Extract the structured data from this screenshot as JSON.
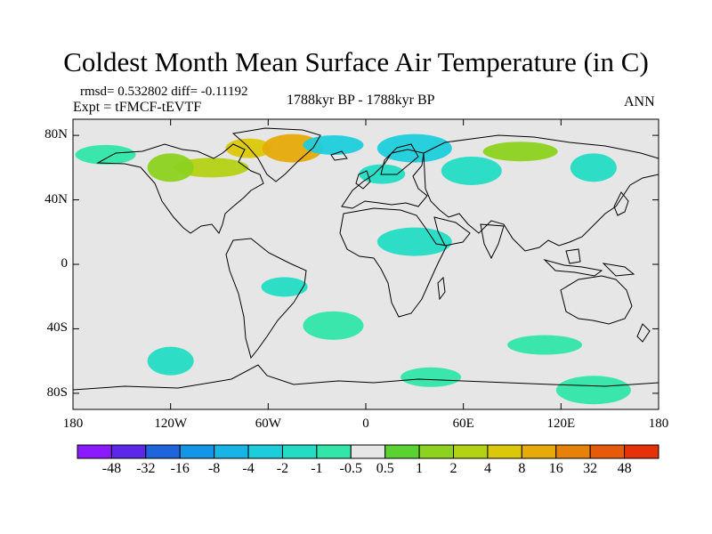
{
  "title": "Coldest Month Mean Surface Air Temperature (in C)",
  "stats": "rmsd= 0.532802  diff= -0.11192",
  "experiment": "Expt = tFMCF-tEVTF",
  "period": "1788kyr BP - 1788kyr BP",
  "season": "ANN",
  "axes": {
    "y_ticks": [
      {
        "label": "80N",
        "lat": 80
      },
      {
        "label": "40N",
        "lat": 40
      },
      {
        "label": "0",
        "lat": 0
      },
      {
        "label": "40S",
        "lat": -40
      },
      {
        "label": "80S",
        "lat": -80
      }
    ],
    "x_ticks": [
      {
        "label": "180",
        "lon": -180
      },
      {
        "label": "120W",
        "lon": -120
      },
      {
        "label": "60W",
        "lon": -60
      },
      {
        "label": "0",
        "lon": 0
      },
      {
        "label": "60E",
        "lon": 60
      },
      {
        "label": "120E",
        "lon": 120
      },
      {
        "label": "180",
        "lon": 180
      }
    ],
    "lat_range": [
      -90,
      90
    ],
    "lon_range": [
      -180,
      180
    ]
  },
  "colorbar": {
    "colors": [
      "#8c1aff",
      "#5a28e6",
      "#1e64dc",
      "#1496e6",
      "#19b4e6",
      "#1ecddc",
      "#23dcc3",
      "#32e6aa",
      "#e6e6e6",
      "#5ad232",
      "#8cd21e",
      "#b4d214",
      "#dcc80a",
      "#e6aa0a",
      "#e6820a",
      "#e65a0a",
      "#e6320a"
    ],
    "labels": [
      "-48",
      "-32",
      "-16",
      "-8",
      "-4",
      "-2",
      "-1",
      "-0.5",
      "0.5",
      "1",
      "2",
      "4",
      "8",
      "16",
      "32",
      "48"
    ]
  },
  "anomaly_regions": [
    {
      "lon": -72,
      "lat": 72,
      "level": "4"
    },
    {
      "lon": -45,
      "lat": 72,
      "level": "8"
    },
    {
      "lon": -95,
      "lat": 60,
      "level": "2"
    },
    {
      "lon": -120,
      "lat": 60,
      "level": "1"
    },
    {
      "lon": -20,
      "lat": 74,
      "level": "-2"
    },
    {
      "lon": 30,
      "lat": 72,
      "level": "-2"
    },
    {
      "lon": 10,
      "lat": 56,
      "level": "-1"
    },
    {
      "lon": 65,
      "lat": 58,
      "level": "-1"
    },
    {
      "lon": 95,
      "lat": 70,
      "level": "1"
    },
    {
      "lon": 140,
      "lat": 60,
      "level": "-1"
    },
    {
      "lon": -160,
      "lat": 68,
      "level": "-0.5"
    },
    {
      "lon": 30,
      "lat": 14,
      "level": "-1"
    },
    {
      "lon": -50,
      "lat": -14,
      "level": "-1"
    },
    {
      "lon": -20,
      "lat": -38,
      "level": "-0.5"
    },
    {
      "lon": 110,
      "lat": -50,
      "level": "-0.5"
    },
    {
      "lon": -120,
      "lat": -60,
      "level": "-1"
    },
    {
      "lon": 40,
      "lat": -70,
      "level": "-0.5"
    },
    {
      "lon": 140,
      "lat": -78,
      "level": "-0.5"
    }
  ]
}
